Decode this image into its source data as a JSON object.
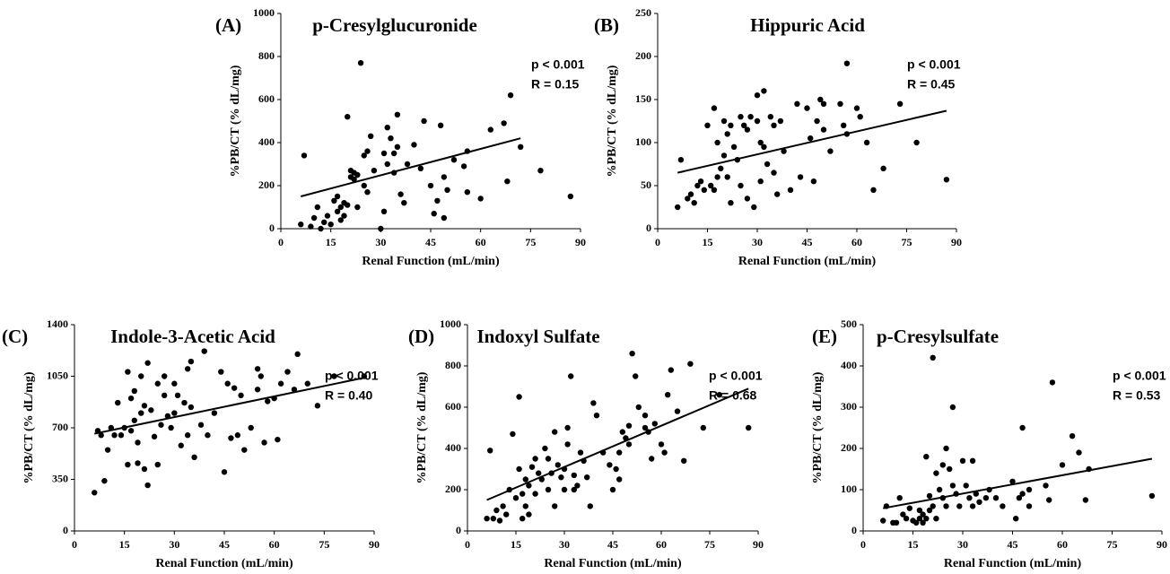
{
  "chart_data": [
    {
      "type": "scatter",
      "panel_label": "(A)",
      "title": "p-Cresylglucuronide",
      "x_label": "Renal Function (mL/min)",
      "y_label": "%PB/CT (% dL/mg)",
      "annotations": [
        "p < 0.001",
        "R = 0.15"
      ],
      "color": "#000000",
      "xlim": [
        0,
        90
      ],
      "xticks": [
        0,
        15,
        30,
        45,
        60,
        75,
        90
      ],
      "ylim": [
        0,
        1000
      ],
      "yticks": [
        0,
        200,
        400,
        600,
        800,
        1000
      ],
      "x": [
        6,
        7,
        9,
        10,
        11,
        12,
        13,
        14,
        15,
        16,
        17,
        17,
        18,
        18,
        19,
        19,
        20,
        20,
        21,
        21,
        22,
        22,
        23,
        23,
        24,
        25,
        25,
        26,
        26,
        27,
        28,
        30,
        31,
        31,
        32,
        32,
        33,
        34,
        34,
        35,
        35,
        36,
        37,
        38,
        40,
        42,
        43,
        45,
        46,
        47,
        48,
        49,
        49,
        50,
        52,
        55,
        56,
        56,
        60,
        63,
        67,
        68,
        69,
        72,
        78,
        87
      ],
      "y": [
        20,
        340,
        10,
        50,
        100,
        0,
        30,
        60,
        20,
        130,
        150,
        80,
        100,
        40,
        120,
        60,
        520,
        110,
        240,
        270,
        230,
        260,
        250,
        100,
        770,
        340,
        200,
        360,
        170,
        430,
        270,
        0,
        350,
        80,
        470,
        300,
        420,
        350,
        260,
        530,
        380,
        160,
        120,
        300,
        390,
        280,
        500,
        200,
        70,
        130,
        480,
        240,
        50,
        180,
        320,
        290,
        360,
        170,
        140,
        460,
        490,
        220,
        620,
        380,
        270,
        150
      ],
      "trendline": {
        "x": [
          6,
          72
        ],
        "y": [
          150,
          420
        ]
      }
    },
    {
      "type": "scatter",
      "panel_label": "(B)",
      "title": "Hippuric Acid",
      "x_label": "Renal Function (mL/min)",
      "y_label": "%PB/CT (% dL/mg)",
      "annotations": [
        "p < 0.001",
        "R = 0.45"
      ],
      "color": "#000000",
      "xlim": [
        0,
        90
      ],
      "xticks": [
        0,
        15,
        30,
        45,
        60,
        75,
        90
      ],
      "ylim": [
        0,
        250
      ],
      "yticks": [
        0,
        50,
        100,
        150,
        200,
        250
      ],
      "x": [
        6,
        7,
        9,
        10,
        11,
        12,
        13,
        14,
        15,
        16,
        17,
        17,
        18,
        18,
        19,
        20,
        20,
        21,
        21,
        22,
        22,
        23,
        24,
        25,
        25,
        26,
        27,
        27,
        28,
        29,
        30,
        30,
        31,
        31,
        32,
        32,
        33,
        34,
        35,
        35,
        36,
        37,
        38,
        40,
        42,
        43,
        45,
        46,
        47,
        48,
        49,
        50,
        50,
        52,
        55,
        56,
        57,
        57,
        60,
        61,
        63,
        65,
        68,
        73,
        78,
        87
      ],
      "y": [
        25,
        80,
        35,
        40,
        30,
        50,
        55,
        45,
        120,
        50,
        140,
        45,
        100,
        60,
        70,
        125,
        85,
        110,
        60,
        120,
        30,
        95,
        80,
        130,
        50,
        120,
        115,
        35,
        130,
        25,
        125,
        155,
        100,
        55,
        160,
        95,
        75,
        130,
        120,
        65,
        40,
        125,
        90,
        45,
        145,
        60,
        140,
        105,
        55,
        125,
        150,
        145,
        115,
        90,
        145,
        120,
        110,
        192,
        140,
        130,
        100,
        45,
        70,
        145,
        100,
        57
      ],
      "trendline": {
        "x": [
          6,
          87
        ],
        "y": [
          65,
          137
        ]
      }
    },
    {
      "type": "scatter",
      "panel_label": "(C)",
      "title": "Indole-3-Acetic Acid",
      "x_label": "Renal Function (mL/min)",
      "y_label": "%PB/CT (% dL/mg)",
      "annotations": [
        "p <  0.001",
        "R = 0.40"
      ],
      "color": "#000000",
      "xlim": [
        0,
        90
      ],
      "xticks": [
        0,
        15,
        30,
        45,
        60,
        75,
        90
      ],
      "ylim": [
        0,
        1400
      ],
      "yticks": [
        0,
        350,
        700,
        1050,
        1400
      ],
      "x": [
        6,
        7,
        8,
        9,
        10,
        11,
        12,
        13,
        14,
        15,
        16,
        16,
        17,
        17,
        18,
        18,
        19,
        19,
        20,
        20,
        21,
        21,
        22,
        22,
        23,
        24,
        25,
        25,
        26,
        27,
        27,
        28,
        29,
        30,
        30,
        31,
        32,
        33,
        34,
        34,
        35,
        35,
        36,
        38,
        39,
        40,
        42,
        44,
        45,
        46,
        47,
        48,
        49,
        50,
        51,
        53,
        55,
        55,
        56,
        57,
        58,
        60,
        61,
        62,
        64,
        66,
        67,
        70,
        73,
        78,
        87
      ],
      "y": [
        260,
        680,
        650,
        340,
        550,
        700,
        650,
        870,
        650,
        700,
        1080,
        450,
        680,
        900,
        950,
        750,
        600,
        460,
        800,
        1050,
        420,
        850,
        1140,
        310,
        820,
        640,
        1000,
        450,
        720,
        1050,
        920,
        780,
        700,
        1000,
        800,
        920,
        580,
        870,
        1100,
        650,
        1150,
        840,
        500,
        720,
        1220,
        650,
        800,
        1080,
        400,
        1000,
        630,
        970,
        650,
        920,
        550,
        700,
        1100,
        960,
        1050,
        600,
        880,
        900,
        620,
        1000,
        1080,
        960,
        1200,
        1000,
        850,
        1050,
        1050
      ],
      "trendline": {
        "x": [
          6,
          87
        ],
        "y": [
          660,
          1040
        ]
      }
    },
    {
      "type": "scatter",
      "panel_label": "(D)",
      "title": "Indoxyl Sulfate",
      "x_label": "Renal Function (mL/min)",
      "y_label": "%PB/CT (% dL/mg)",
      "annotations": [
        "p < 0.001",
        "R = 0.68"
      ],
      "color": "#000000",
      "xlim": [
        0,
        90
      ],
      "xticks": [
        0,
        15,
        30,
        45,
        60,
        75,
        90
      ],
      "ylim": [
        0,
        1000
      ],
      "yticks": [
        0,
        200,
        400,
        600,
        800,
        1000
      ],
      "x": [
        6,
        7,
        8,
        9,
        10,
        11,
        12,
        13,
        14,
        15,
        16,
        16,
        17,
        17,
        18,
        18,
        19,
        19,
        20,
        21,
        21,
        22,
        23,
        24,
        25,
        25,
        26,
        27,
        27,
        28,
        29,
        30,
        30,
        31,
        31,
        32,
        33,
        33,
        34,
        35,
        36,
        37,
        38,
        39,
        40,
        42,
        44,
        45,
        46,
        47,
        47,
        48,
        49,
        50,
        50,
        51,
        52,
        53,
        55,
        55,
        56,
        57,
        58,
        60,
        61,
        62,
        63,
        65,
        67,
        69,
        73,
        78,
        87
      ],
      "y": [
        60,
        390,
        60,
        100,
        50,
        120,
        80,
        200,
        470,
        160,
        300,
        650,
        180,
        60,
        250,
        120,
        220,
        80,
        310,
        350,
        180,
        280,
        250,
        400,
        200,
        350,
        280,
        480,
        120,
        320,
        260,
        300,
        200,
        420,
        500,
        750,
        270,
        200,
        220,
        380,
        340,
        260,
        120,
        620,
        560,
        380,
        320,
        200,
        300,
        380,
        250,
        480,
        450,
        420,
        510,
        860,
        750,
        600,
        500,
        560,
        480,
        350,
        520,
        420,
        380,
        660,
        780,
        580,
        340,
        810,
        500,
        660,
        500
      ],
      "trendline": {
        "x": [
          6,
          87
        ],
        "y": [
          150,
          690
        ]
      }
    },
    {
      "type": "scatter",
      "panel_label": "(E)",
      "title": "p-Cresylsulfate",
      "x_label": "Renal Function (mL/min)",
      "y_label": "%PB/CT (% dL/mg)",
      "annotations": [
        "p < 0.001",
        "R = 0.53"
      ],
      "color": "#000000",
      "xlim": [
        0,
        90
      ],
      "xticks": [
        0,
        15,
        30,
        45,
        60,
        75,
        90
      ],
      "ylim": [
        0,
        500
      ],
      "yticks": [
        0,
        100,
        200,
        300,
        400,
        500
      ],
      "x": [
        6,
        7,
        9,
        10,
        11,
        12,
        13,
        14,
        15,
        16,
        17,
        17,
        18,
        18,
        19,
        19,
        20,
        20,
        21,
        21,
        22,
        22,
        23,
        24,
        24,
        25,
        25,
        26,
        27,
        27,
        28,
        29,
        30,
        31,
        32,
        33,
        33,
        34,
        35,
        37,
        38,
        40,
        42,
        45,
        46,
        47,
        48,
        48,
        50,
        50,
        55,
        56,
        57,
        60,
        63,
        65,
        67,
        68,
        87
      ],
      "y": [
        25,
        60,
        20,
        20,
        80,
        40,
        30,
        55,
        25,
        20,
        50,
        30,
        40,
        20,
        180,
        30,
        50,
        85,
        60,
        420,
        140,
        30,
        100,
        80,
        160,
        200,
        60,
        150,
        110,
        300,
        90,
        60,
        170,
        110,
        80,
        170,
        60,
        90,
        70,
        80,
        100,
        80,
        60,
        120,
        30,
        80,
        90,
        250,
        60,
        100,
        110,
        75,
        360,
        160,
        230,
        190,
        75,
        150,
        85
      ],
      "trendline": {
        "x": [
          6,
          87
        ],
        "y": [
          55,
          175
        ]
      }
    }
  ]
}
